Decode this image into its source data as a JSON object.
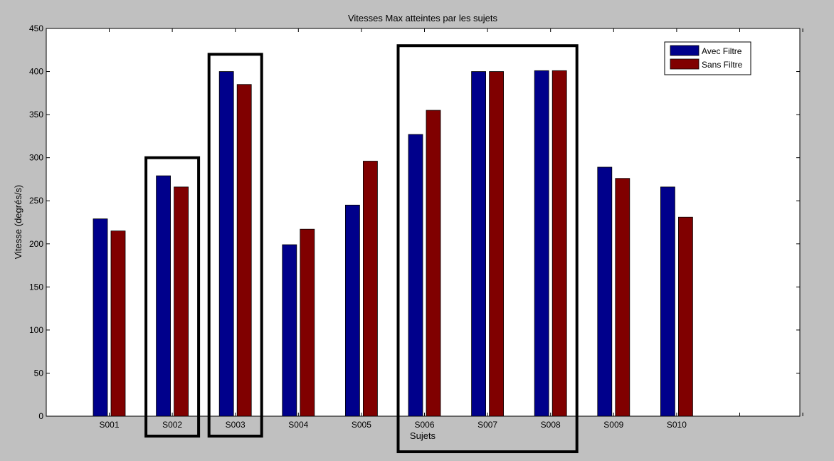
{
  "colors": {
    "background": "#c0c0c0",
    "plot_background": "#ffffff",
    "avec": "#00008b",
    "sans": "#800000",
    "highlight_box": "#000000"
  },
  "chart_data": {
    "type": "bar",
    "title": "Vitesses Max atteintes par les sujets",
    "xlabel": "Sujets",
    "ylabel": "Vitesse (degrés/s)",
    "categories": [
      "S001",
      "S002",
      "S003",
      "S004",
      "S005",
      "S006",
      "S007",
      "S008",
      "S009",
      "S010"
    ],
    "x_extra_slots": 2,
    "series": [
      {
        "name": "Avec Filtre",
        "color": "#00008b",
        "values": [
          229,
          279,
          400,
          199,
          245,
          327,
          400,
          401,
          289,
          266
        ]
      },
      {
        "name": "Sans Filtre",
        "color": "#800000",
        "values": [
          215,
          266,
          385,
          217,
          296,
          355,
          400,
          401,
          276,
          231
        ]
      }
    ],
    "ylim": [
      0,
      450
    ],
    "yticks": [
      0,
      50,
      100,
      150,
      200,
      250,
      300,
      350,
      400,
      450
    ],
    "grid": false,
    "legend_position": "top-right",
    "highlighted_groups": [
      {
        "categories": [
          "S002"
        ],
        "top_value": 300
      },
      {
        "categories": [
          "S003"
        ],
        "top_value": 420
      },
      {
        "categories": [
          "S006",
          "S007",
          "S008"
        ],
        "top_value": 430
      }
    ]
  }
}
